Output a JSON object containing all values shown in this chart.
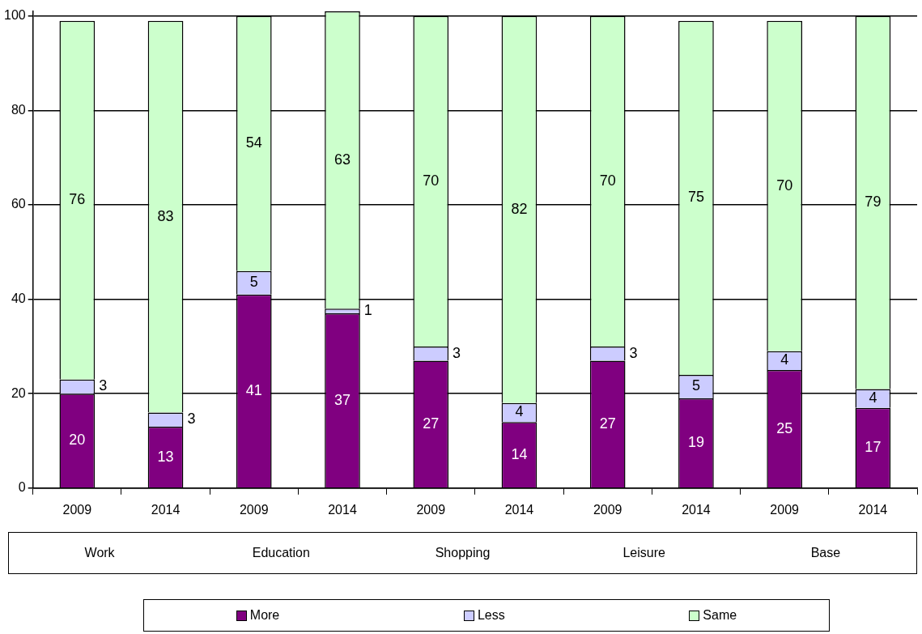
{
  "chart_data": {
    "type": "bar",
    "stacked": true,
    "categories": [
      "2009",
      "2014",
      "2009",
      "2014",
      "2009",
      "2014",
      "2009",
      "2014",
      "2009",
      "2014"
    ],
    "series": [
      {
        "name": "More",
        "color": "#800080",
        "values": [
          20,
          13,
          41,
          37,
          27,
          14,
          27,
          19,
          25,
          17
        ]
      },
      {
        "name": "Less",
        "color": "#ccccff",
        "values": [
          3,
          3,
          5,
          1,
          3,
          4,
          3,
          5,
          4,
          4
        ]
      },
      {
        "name": "Same",
        "color": "#ccffcc",
        "values": [
          76,
          83,
          54,
          63,
          70,
          82,
          70,
          75,
          70,
          79
        ]
      }
    ],
    "ylim": [
      0,
      101
    ],
    "yticks": [
      0,
      20,
      40,
      60,
      80,
      100
    ],
    "grid": "y",
    "data_labels": true,
    "legend": "bottom",
    "annotations": [
      "Work",
      "Education",
      "Shopping",
      "Leisure",
      "Base"
    ]
  }
}
